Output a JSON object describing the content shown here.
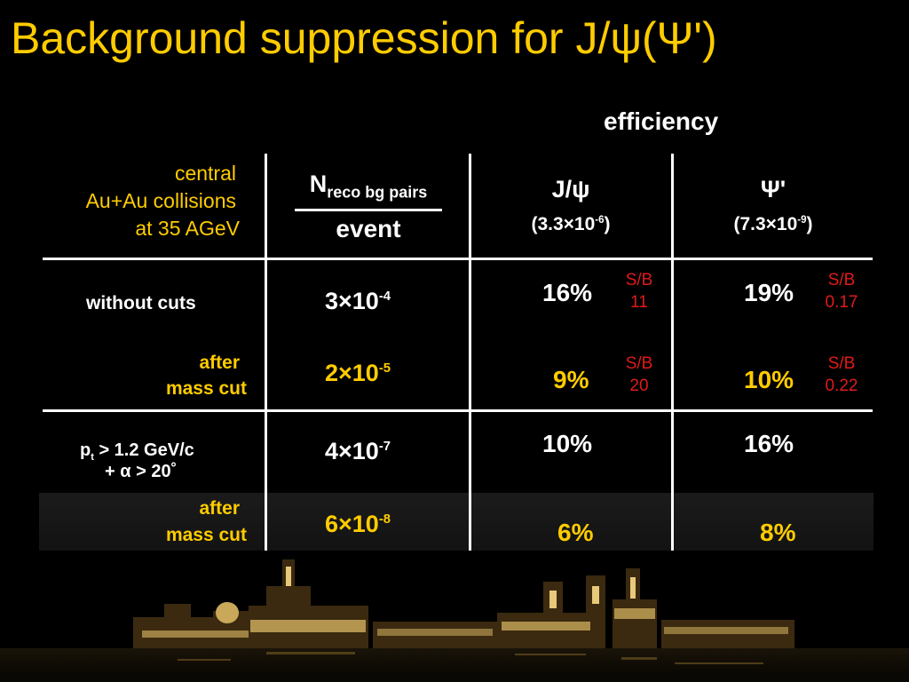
{
  "slide": {
    "title": "Background suppression for J/ψ(Ψ')",
    "efficiency_label": "efficiency"
  },
  "header": {
    "conditions": [
      "central",
      "Au+Au collisions",
      "at 35 AGeV"
    ],
    "fraction": {
      "numerator_main": "N",
      "numerator_sub": "reco bg pairs",
      "denominator": "event"
    },
    "jpsi": {
      "name": "J/ψ",
      "value_prefix": "(3.3×10",
      "value_exp": "-6",
      "value_suffix": ")"
    },
    "psiprime": {
      "name": "Ψ'",
      "value_prefix": "(7.3×10",
      "value_exp": "-9",
      "value_suffix": ")"
    }
  },
  "rows": [
    {
      "label": "without cuts",
      "bg_base": "3×10",
      "bg_exp": "-4",
      "jpsi_eff": "16%",
      "jpsi_sb_label": "S/B",
      "jpsi_sb": "11",
      "psi_eff": "19%",
      "psi_sb_label": "S/B",
      "psi_sb": "0.17"
    },
    {
      "label_line1": "after",
      "label_line2": "mass cut",
      "bg_base": "2×10",
      "bg_exp": "-5",
      "jpsi_eff": "9%",
      "jpsi_sb_label": "S/B",
      "jpsi_sb": "20",
      "psi_eff": "10%",
      "psi_sb_label": "S/B",
      "psi_sb": "0.22"
    },
    {
      "label_p": "p",
      "label_p_sub": "t",
      "label_rest": " > 1.2 GeV/c",
      "label_line2": "+ α > 20˚",
      "bg_base": "4×10",
      "bg_exp": "-7",
      "jpsi_eff": "10%",
      "psi_eff": "16%"
    },
    {
      "label_line1": "after",
      "label_line2": "mass cut",
      "bg_base": "6×10",
      "bg_exp": "-8",
      "jpsi_eff": "6%",
      "psi_eff": "8%"
    }
  ],
  "colors": {
    "background": "#000000",
    "title": "#ffcc00",
    "highlight": "#ffcc00",
    "sb_text": "#e01a1a",
    "text": "#ffffff"
  }
}
